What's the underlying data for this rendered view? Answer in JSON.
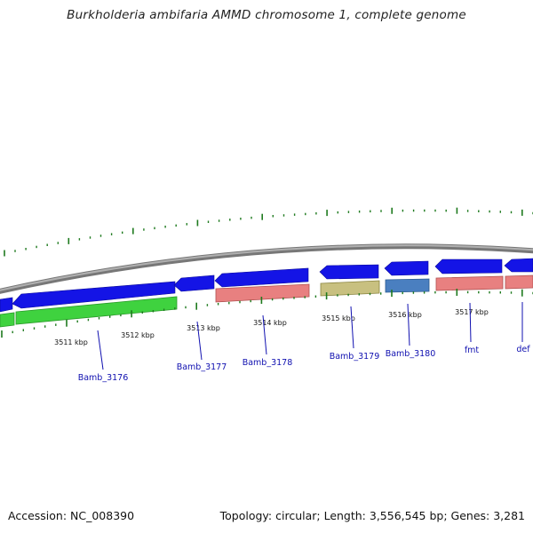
{
  "title": "Burkholderia ambifaria AMMD chromosome 1, complete genome",
  "footer": {
    "accession": "Accession: NC_008390",
    "summary": "Topology: circular; Length: 3,556,545 bp; Genes: 3,281"
  },
  "scale_labels": [
    "3511 kbp",
    "3512 kbp",
    "3513 kbp",
    "3514 kbp",
    "3515 kbp",
    "3516 kbp",
    "3517 kbp"
  ],
  "gene_labels": [
    "Bamb_3176",
    "Bamb_3177",
    "Bamb_3178",
    "Bamb_3179",
    "Bamb_3180",
    "fmt",
    "def"
  ],
  "colors": {
    "backbone": "#8a8a8a",
    "cds": "#1414e6",
    "feature_green": "#3fd23f",
    "feature_red": "#e88080",
    "feature_khaki": "#c8c080",
    "feature_steel": "#4a7fc0",
    "ticks": "#1e7a1e",
    "label": "#1010b0"
  }
}
